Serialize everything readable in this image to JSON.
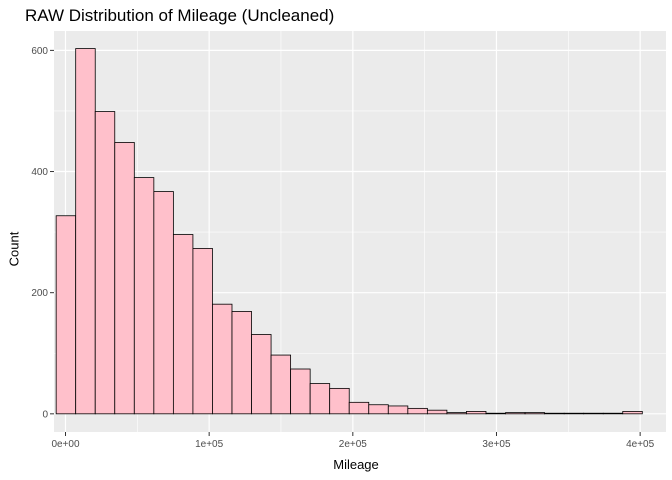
{
  "chart_data": {
    "type": "bar",
    "title": "RAW Distribution of Mileage (Uncleaned)",
    "xlabel": "Mileage",
    "ylabel": "Count",
    "xlim": [
      -8000,
      418000
    ],
    "ylim": [
      -30,
      632
    ],
    "x_ticks": [
      {
        "value": 0,
        "label": "0e+00"
      },
      {
        "value": 100000,
        "label": "1e+05"
      },
      {
        "value": 200000,
        "label": "2e+05"
      },
      {
        "value": 300000,
        "label": "3e+05"
      },
      {
        "value": 400000,
        "label": "4e+05"
      }
    ],
    "y_ticks": [
      {
        "value": 0,
        "label": "0"
      },
      {
        "value": 200,
        "label": "200"
      },
      {
        "value": 400,
        "label": "400"
      },
      {
        "value": 600,
        "label": "600"
      }
    ],
    "grid": true,
    "bin_width": 13600,
    "bin_start": -6500,
    "values": [
      327,
      603,
      499,
      448,
      390,
      367,
      296,
      273,
      181,
      169,
      131,
      97,
      74,
      50,
      42,
      19,
      15,
      13,
      9,
      6,
      2,
      4,
      1,
      2,
      2,
      1,
      1,
      1,
      1,
      4
    ],
    "bar_fill": "#ffc0cb",
    "bar_stroke": "#000000",
    "panel_background": "#ebebeb",
    "grid_color": "#ffffff"
  }
}
